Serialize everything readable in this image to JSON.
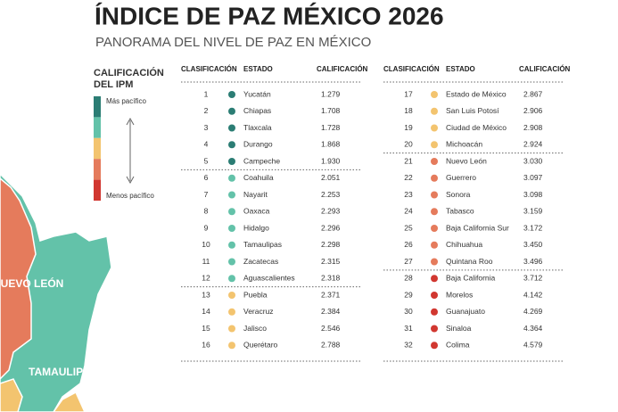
{
  "header": {
    "title": "ÍNDICE DE PAZ MÉXICO 2026",
    "subtitle": "PANORAMA DEL NIVEL DE PAZ EN MÉXICO"
  },
  "legend": {
    "title": [
      "CALIFICACIÓN",
      "DEL IPM"
    ],
    "top_label": "Más pacífico",
    "bottom_label": "Menos pacífico",
    "colors": [
      "#2b7d74",
      "#63c2a9",
      "#f3c46f",
      "#e57b5c",
      "#d13730"
    ]
  },
  "map": {
    "labels": [
      "NUEVO LEÓN",
      "TAMAULIPAS"
    ]
  },
  "tables": [
    {
      "columns": [
        "CLASIFICACIÓN",
        "ESTADO",
        "CALIFICACIÓN"
      ],
      "rows": [
        [
          1,
          "Yucatán",
          "1.279",
          "#2b7d74"
        ],
        [
          2,
          "Chiapas",
          "1.708",
          "#2b7d74"
        ],
        [
          3,
          "Tlaxcala",
          "1.728",
          "#2b7d74"
        ],
        [
          4,
          "Durango",
          "1.868",
          "#2b7d74"
        ],
        [
          5,
          "Campeche",
          "1.930",
          "#2b7d74"
        ],
        [
          6,
          "Coahuila",
          "2.051",
          "#63c2a9"
        ],
        [
          7,
          "Nayarit",
          "2.253",
          "#63c2a9"
        ],
        [
          8,
          "Oaxaca",
          "2.293",
          "#63c2a9"
        ],
        [
          9,
          "Hidalgo",
          "2.296",
          "#63c2a9"
        ],
        [
          10,
          "Tamaulipas",
          "2.298",
          "#63c2a9"
        ],
        [
          11,
          "Zacatecas",
          "2.315",
          "#63c2a9"
        ],
        [
          12,
          "Aguascalientes",
          "2.318",
          "#63c2a9"
        ],
        [
          13,
          "Puebla",
          "2.371",
          "#f3c46f"
        ],
        [
          14,
          "Veracruz",
          "2.384",
          "#f3c46f"
        ],
        [
          15,
          "Jalisco",
          "2.546",
          "#f3c46f"
        ],
        [
          16,
          "Querétaro",
          "2.788",
          "#f3c46f"
        ]
      ]
    },
    {
      "columns": [
        "CLASIFICACIÓN",
        "ESTADO",
        "CALIFICACIÓN"
      ],
      "rows": [
        [
          17,
          "Estado de México",
          "2.867",
          "#f3c46f"
        ],
        [
          18,
          "San Luis Potosí",
          "2.906",
          "#f3c46f"
        ],
        [
          19,
          "Ciudad de México",
          "2.908",
          "#f3c46f"
        ],
        [
          20,
          "Michoacán",
          "2.924",
          "#f3c46f"
        ],
        [
          21,
          "Nuevo León",
          "3.030",
          "#e57b5c"
        ],
        [
          22,
          "Guerrero",
          "3.097",
          "#e57b5c"
        ],
        [
          23,
          "Sonora",
          "3.098",
          "#e57b5c"
        ],
        [
          24,
          "Tabasco",
          "3.159",
          "#e57b5c"
        ],
        [
          25,
          "Baja California Sur",
          "3.172",
          "#e57b5c"
        ],
        [
          26,
          "Chihuahua",
          "3.450",
          "#e57b5c"
        ],
        [
          27,
          "Quintana Roo",
          "3.496",
          "#e57b5c"
        ],
        [
          28,
          "Baja California",
          "3.712",
          "#d13730"
        ],
        [
          29,
          "Morelos",
          "4.142",
          "#d13730"
        ],
        [
          30,
          "Guanajuato",
          "4.269",
          "#d13730"
        ],
        [
          31,
          "Sinaloa",
          "4.364",
          "#d13730"
        ],
        [
          32,
          "Colima",
          "4.579",
          "#d13730"
        ]
      ]
    }
  ]
}
